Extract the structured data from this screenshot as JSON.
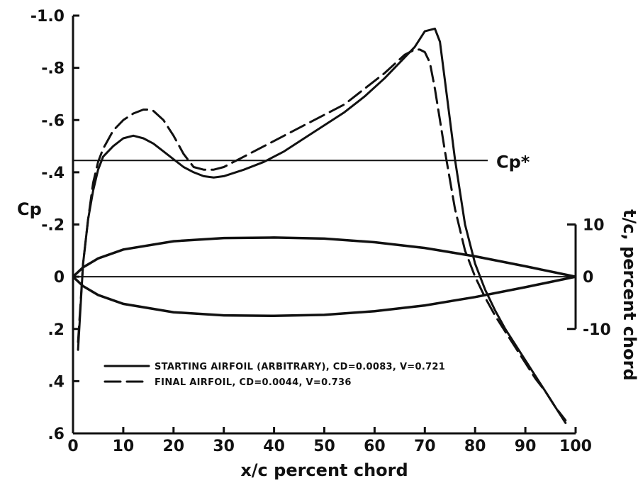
{
  "chart_data": {
    "type": "line",
    "xlabel": "x/c percent chord",
    "ylabel": "Cp",
    "y2label": "t/c, percent chord",
    "y_axis_inverted": true,
    "xlim": [
      0,
      100
    ],
    "ylim": [
      -1.0,
      0.6
    ],
    "y2lim": [
      -10,
      10
    ],
    "x_ticks": [
      0,
      10,
      20,
      30,
      40,
      50,
      60,
      70,
      80,
      90,
      100
    ],
    "x_tick_labels": [
      "0",
      "10",
      "20",
      "30",
      "40",
      "50",
      "60",
      "70",
      "80",
      "90",
      "100"
    ],
    "y_ticks": [
      -1.0,
      -0.8,
      -0.6,
      -0.4,
      -0.2,
      0,
      0.2,
      0.4,
      0.6
    ],
    "y_tick_labels": [
      "-1.0",
      "-.8",
      "-.6",
      "-.4",
      "-.2",
      "0",
      ".2",
      ".4",
      ".6"
    ],
    "y2_ticks": [
      10,
      0,
      -10
    ],
    "y2_tick_labels": [
      "10",
      "0",
      "-10"
    ],
    "grid": false,
    "reference_line": {
      "label": "Cp*",
      "y": -0.445
    },
    "series": [
      {
        "name": "STARTING AIRFOIL (ARBITRARY), CD=0.0083, V=0.721",
        "style": "solid",
        "x": [
          1,
          2,
          3,
          4,
          5,
          6,
          8,
          10,
          12,
          14,
          16,
          18,
          20,
          22,
          24,
          26,
          28,
          30,
          34,
          38,
          42,
          46,
          50,
          54,
          58,
          62,
          66,
          68,
          70,
          72,
          73,
          74,
          76,
          78,
          80,
          82,
          84,
          86,
          88,
          90,
          92,
          94,
          96,
          98
        ],
        "y": [
          0.28,
          -0.05,
          -0.22,
          -0.33,
          -0.41,
          -0.46,
          -0.5,
          -0.53,
          -0.54,
          -0.53,
          -0.51,
          -0.48,
          -0.45,
          -0.42,
          -0.4,
          -0.385,
          -0.38,
          -0.385,
          -0.41,
          -0.44,
          -0.48,
          -0.53,
          -0.58,
          -0.63,
          -0.69,
          -0.76,
          -0.84,
          -0.88,
          -0.94,
          -0.95,
          -0.9,
          -0.75,
          -0.45,
          -0.2,
          -0.05,
          0.05,
          0.13,
          0.2,
          0.26,
          0.32,
          0.38,
          0.44,
          0.5,
          0.56
        ]
      },
      {
        "name": "FINAL AIRFOIL, CD=0.0044, V=0.736",
        "style": "dashed",
        "x": [
          1,
          2,
          3,
          4,
          5,
          6,
          8,
          10,
          12,
          14,
          15,
          16,
          18,
          20,
          22,
          24,
          26,
          28,
          30,
          34,
          38,
          42,
          46,
          50,
          54,
          58,
          62,
          66,
          68,
          69,
          70,
          71,
          72,
          74,
          76,
          78,
          80,
          82,
          84,
          86,
          88,
          90,
          92,
          94,
          96,
          98
        ],
        "y": [
          0.25,
          -0.05,
          -0.22,
          -0.36,
          -0.44,
          -0.49,
          -0.56,
          -0.6,
          -0.625,
          -0.64,
          -0.64,
          -0.635,
          -0.6,
          -0.54,
          -0.47,
          -0.42,
          -0.41,
          -0.41,
          -0.42,
          -0.46,
          -0.5,
          -0.54,
          -0.58,
          -0.62,
          -0.66,
          -0.72,
          -0.78,
          -0.85,
          -0.87,
          -0.87,
          -0.86,
          -0.82,
          -0.72,
          -0.48,
          -0.26,
          -0.1,
          0.0,
          0.08,
          0.15,
          0.21,
          0.27,
          0.33,
          0.39,
          0.44,
          0.5,
          0.55
        ]
      },
      {
        "name": "airfoil upper surface",
        "axis": "right",
        "style": "solid",
        "x": [
          0,
          2,
          5,
          10,
          20,
          30,
          40,
          50,
          60,
          70,
          80,
          90,
          100
        ],
        "y": [
          0,
          1.8,
          3.5,
          5.2,
          6.8,
          7.4,
          7.5,
          7.3,
          6.6,
          5.5,
          3.9,
          2.0,
          0
        ]
      },
      {
        "name": "airfoil lower surface",
        "axis": "right",
        "style": "solid",
        "x": [
          0,
          2,
          5,
          10,
          20,
          30,
          40,
          50,
          60,
          70,
          80,
          90,
          100
        ],
        "y": [
          0,
          -1.8,
          -3.5,
          -5.2,
          -6.8,
          -7.4,
          -7.5,
          -7.3,
          -6.6,
          -5.5,
          -3.9,
          -2.0,
          0
        ]
      }
    ],
    "legend": {
      "placement": "lower-left",
      "entries": [
        {
          "style": "solid",
          "text": "STARTING AIRFOIL (ARBITRARY), CD=0.0083, V=0.721"
        },
        {
          "style": "dashed",
          "text": "FINAL AIRFOIL, CD=0.0044, V=0.736"
        }
      ]
    }
  }
}
